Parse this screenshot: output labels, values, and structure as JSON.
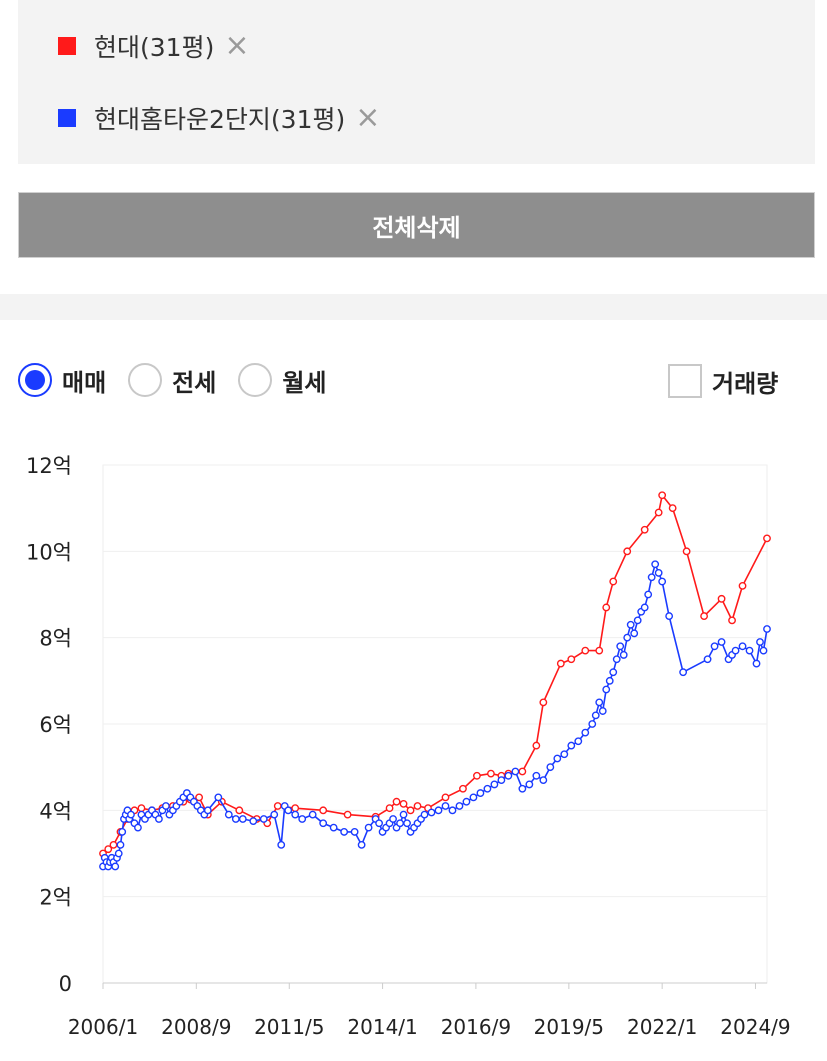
{
  "legend": {
    "items": [
      {
        "label": "현대(31평)",
        "color": "#ff1a1a"
      },
      {
        "label": "현대홈타운2단지(31평)",
        "color": "#1a3bff"
      }
    ],
    "remove_icon": "×"
  },
  "clear_all_label": "전체삭제",
  "deal_types": [
    {
      "label": "매매",
      "selected": true
    },
    {
      "label": "전세",
      "selected": false
    },
    {
      "label": "월세",
      "selected": false
    }
  ],
  "volume_toggle": {
    "label": "거래량",
    "checked": false
  },
  "chart_data": {
    "type": "line",
    "ylim": [
      0,
      12
    ],
    "y_ticks": [
      0,
      2,
      4,
      6,
      8,
      10,
      12
    ],
    "y_tick_labels": [
      "0",
      "2억",
      "4억",
      "6억",
      "8억",
      "10억",
      "12억"
    ],
    "xlim": [
      2006.0,
      2025.0
    ],
    "x_ticks": [
      2006.0,
      2008.67,
      2011.33,
      2014.0,
      2016.67,
      2019.33,
      2022.0,
      2024.67
    ],
    "x_tick_labels": [
      "2006/1",
      "2008/9",
      "2011/5",
      "2014/1",
      "2016/9",
      "2019/5",
      "2022/1",
      "2024/9"
    ],
    "grid": true,
    "series": [
      {
        "name": "현대(31평)",
        "color": "#ff1a1a",
        "x": [
          2006.0,
          2006.15,
          2006.3,
          2006.5,
          2006.7,
          2006.9,
          2007.1,
          2007.4,
          2007.7,
          2008.0,
          2008.3,
          2008.5,
          2008.75,
          2009.0,
          2009.4,
          2009.9,
          2010.4,
          2010.7,
          2011.0,
          2011.5,
          2012.3,
          2013.0,
          2013.8,
          2014.2,
          2014.4,
          2014.6,
          2014.8,
          2015.0,
          2015.3,
          2015.8,
          2016.3,
          2016.7,
          2017.1,
          2017.4,
          2017.6,
          2018.0,
          2018.4,
          2018.6,
          2019.1,
          2019.4,
          2019.8,
          2020.2,
          2020.4,
          2020.6,
          2021.0,
          2021.5,
          2021.9,
          2022.0,
          2022.3,
          2022.7,
          2023.2,
          2023.7,
          2024.0,
          2024.3,
          2025.0
        ],
        "y": [
          3.0,
          3.1,
          3.2,
          3.5,
          3.8,
          4.0,
          4.05,
          4.0,
          4.05,
          4.1,
          4.2,
          4.25,
          4.3,
          3.9,
          4.2,
          4.0,
          3.8,
          3.7,
          4.1,
          4.05,
          4.0,
          3.9,
          3.85,
          4.05,
          4.2,
          4.15,
          4.0,
          4.1,
          4.05,
          4.3,
          4.5,
          4.8,
          4.85,
          4.8,
          4.85,
          4.9,
          5.5,
          6.5,
          7.4,
          7.5,
          7.7,
          7.7,
          8.7,
          9.3,
          10.0,
          10.5,
          10.9,
          11.3,
          11.0,
          10.0,
          8.5,
          8.9,
          8.4,
          9.2,
          10.3
        ]
      },
      {
        "name": "현대홈타운2단지(31평)",
        "color": "#1a3bff",
        "x": [
          2006.0,
          2006.05,
          2006.1,
          2006.15,
          2006.2,
          2006.25,
          2006.3,
          2006.35,
          2006.4,
          2006.45,
          2006.5,
          2006.55,
          2006.6,
          2006.65,
          2006.7,
          2006.75,
          2006.8,
          2006.9,
          2007.0,
          2007.1,
          2007.2,
          2007.3,
          2007.4,
          2007.5,
          2007.6,
          2007.7,
          2007.8,
          2007.9,
          2008.0,
          2008.1,
          2008.2,
          2008.3,
          2008.4,
          2008.5,
          2008.6,
          2008.7,
          2008.8,
          2008.9,
          2009.0,
          2009.3,
          2009.6,
          2009.8,
          2010.0,
          2010.3,
          2010.6,
          2010.9,
          2011.1,
          2011.2,
          2011.3,
          2011.5,
          2011.7,
          2012.0,
          2012.3,
          2012.6,
          2012.9,
          2013.2,
          2013.4,
          2013.6,
          2013.8,
          2013.9,
          2014.0,
          2014.1,
          2014.2,
          2014.3,
          2014.4,
          2014.5,
          2014.6,
          2014.7,
          2014.8,
          2014.9,
          2015.0,
          2015.1,
          2015.2,
          2015.4,
          2015.6,
          2015.8,
          2016.0,
          2016.2,
          2016.4,
          2016.6,
          2016.8,
          2017.0,
          2017.2,
          2017.4,
          2017.6,
          2017.8,
          2018.0,
          2018.2,
          2018.4,
          2018.6,
          2018.8,
          2019.0,
          2019.2,
          2019.4,
          2019.6,
          2019.8,
          2020.0,
          2020.1,
          2020.2,
          2020.3,
          2020.4,
          2020.5,
          2020.6,
          2020.7,
          2020.8,
          2020.9,
          2021.0,
          2021.1,
          2021.2,
          2021.3,
          2021.4,
          2021.5,
          2021.6,
          2021.7,
          2021.8,
          2021.9,
          2022.0,
          2022.2,
          2022.6,
          2023.3,
          2023.5,
          2023.7,
          2023.9,
          2024.0,
          2024.1,
          2024.3,
          2024.5,
          2024.7,
          2024.8,
          2024.9,
          2025.0
        ],
        "y": [
          2.7,
          2.9,
          2.8,
          2.7,
          2.8,
          2.9,
          2.8,
          2.7,
          2.9,
          3.0,
          3.2,
          3.5,
          3.8,
          3.9,
          4.0,
          3.8,
          3.9,
          3.7,
          3.6,
          3.9,
          3.8,
          3.9,
          4.0,
          3.9,
          3.8,
          4.0,
          4.1,
          3.9,
          4.0,
          4.1,
          4.2,
          4.3,
          4.4,
          4.3,
          4.2,
          4.1,
          4.0,
          3.9,
          4.0,
          4.3,
          3.9,
          3.8,
          3.8,
          3.75,
          3.8,
          3.9,
          3.2,
          4.1,
          4.0,
          3.9,
          3.8,
          3.9,
          3.7,
          3.6,
          3.5,
          3.5,
          3.2,
          3.6,
          3.8,
          3.7,
          3.5,
          3.6,
          3.7,
          3.8,
          3.6,
          3.7,
          3.9,
          3.7,
          3.5,
          3.6,
          3.7,
          3.8,
          3.9,
          3.95,
          4.0,
          4.1,
          4.0,
          4.1,
          4.2,
          4.3,
          4.4,
          4.5,
          4.6,
          4.7,
          4.8,
          4.9,
          4.5,
          4.6,
          4.8,
          4.7,
          5.0,
          5.2,
          5.3,
          5.5,
          5.6,
          5.8,
          6.0,
          6.2,
          6.5,
          6.3,
          6.8,
          7.0,
          7.2,
          7.5,
          7.8,
          7.6,
          8.0,
          8.3,
          8.1,
          8.4,
          8.6,
          8.7,
          9.0,
          9.4,
          9.7,
          9.5,
          9.3,
          8.5,
          7.2,
          7.5,
          7.8,
          7.9,
          7.5,
          7.6,
          7.7,
          7.8,
          7.7,
          7.4,
          7.9,
          7.7,
          8.2
        ]
      }
    ]
  }
}
